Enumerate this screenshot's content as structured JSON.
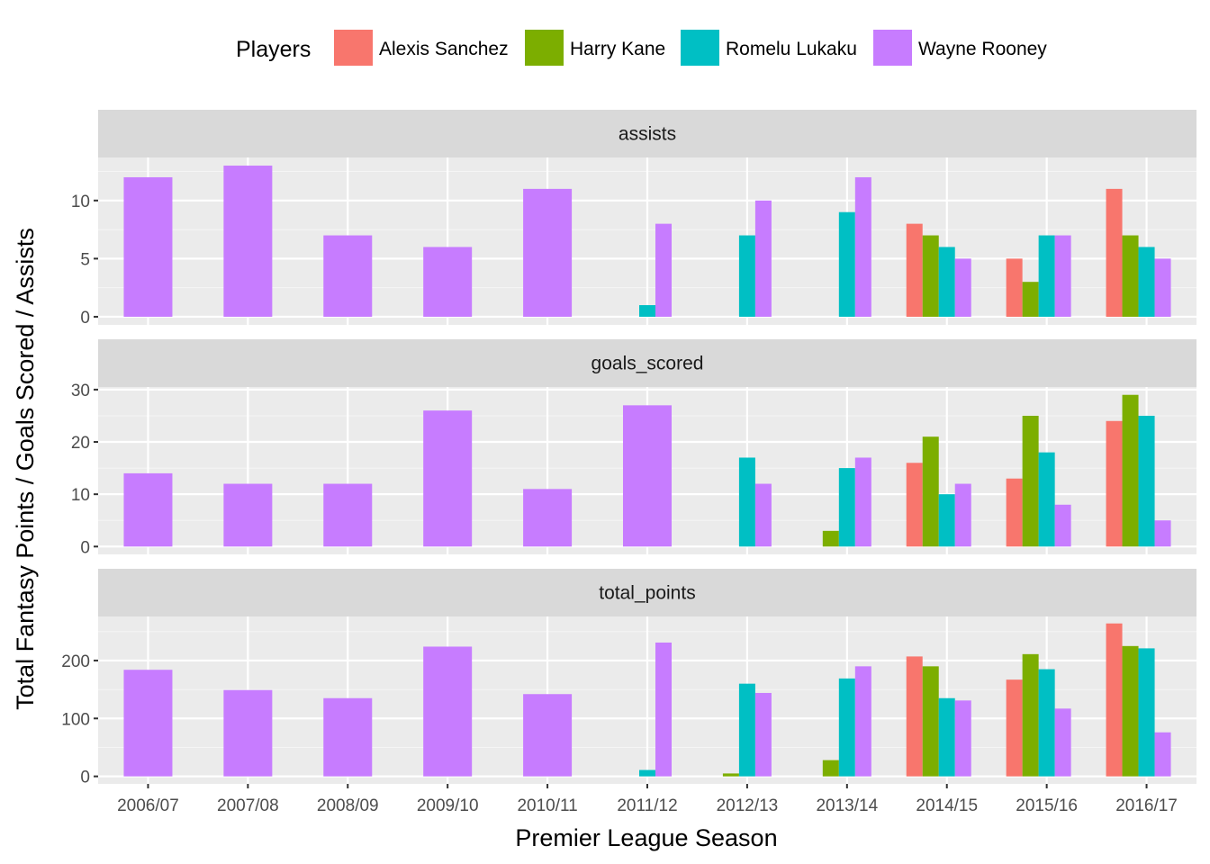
{
  "chart_data": {
    "type": "bar",
    "layout": "faceted-vertical",
    "categories": [
      "2006/07",
      "2007/08",
      "2008/09",
      "2009/10",
      "2010/11",
      "2011/12",
      "2012/13",
      "2013/14",
      "2014/15",
      "2015/16",
      "2016/17"
    ],
    "xlabel": "Premier League Season",
    "ylabel": "Total Fantasy Points / Goals Scored / Assists",
    "grid": true,
    "legend": {
      "position": "top",
      "title": "Players",
      "entries": [
        {
          "name": "Alexis Sanchez",
          "color": "#F8766D"
        },
        {
          "name": "Harry Kane",
          "color": "#7CAE00"
        },
        {
          "name": "Romelu Lukaku",
          "color": "#00BFC4"
        },
        {
          "name": "Wayne Rooney",
          "color": "#C77CFF"
        }
      ]
    },
    "facets": [
      {
        "label": "assists",
        "ylim": [
          -0.7,
          13.7
        ],
        "yticks": [
          0,
          5,
          10
        ],
        "series": [
          {
            "name": "Alexis Sanchez",
            "values": [
              null,
              null,
              null,
              null,
              null,
              null,
              null,
              null,
              8,
              5,
              11
            ]
          },
          {
            "name": "Harry Kane",
            "values": [
              null,
              null,
              null,
              null,
              null,
              null,
              null,
              null,
              7,
              3,
              7
            ]
          },
          {
            "name": "Romelu Lukaku",
            "values": [
              null,
              null,
              null,
              null,
              null,
              1,
              7,
              9,
              6,
              7,
              6
            ]
          },
          {
            "name": "Wayne Rooney",
            "values": [
              12,
              13,
              7,
              6,
              11,
              8,
              10,
              12,
              5,
              7,
              5
            ]
          }
        ]
      },
      {
        "label": "goals_scored",
        "ylim": [
          -1.5,
          30.5
        ],
        "yticks": [
          0,
          10,
          20,
          30
        ],
        "series": [
          {
            "name": "Alexis Sanchez",
            "values": [
              null,
              null,
              null,
              null,
              null,
              null,
              null,
              null,
              16,
              13,
              24
            ]
          },
          {
            "name": "Harry Kane",
            "values": [
              null,
              null,
              null,
              null,
              null,
              null,
              null,
              3,
              21,
              25,
              29
            ]
          },
          {
            "name": "Romelu Lukaku",
            "values": [
              null,
              null,
              null,
              null,
              null,
              null,
              17,
              15,
              10,
              18,
              25
            ]
          },
          {
            "name": "Wayne Rooney",
            "values": [
              14,
              12,
              12,
              26,
              11,
              27,
              12,
              17,
              12,
              8,
              5
            ]
          }
        ]
      },
      {
        "label": "total_points",
        "ylim": [
          -13,
          276
        ],
        "yticks": [
          0,
          100,
          200
        ],
        "series": [
          {
            "name": "Alexis Sanchez",
            "values": [
              null,
              null,
              null,
              null,
              null,
              null,
              null,
              null,
              207,
              167,
              264
            ]
          },
          {
            "name": "Harry Kane",
            "values": [
              null,
              null,
              null,
              null,
              null,
              null,
              5,
              28,
              190,
              211,
              225
            ]
          },
          {
            "name": "Romelu Lukaku",
            "values": [
              null,
              null,
              null,
              null,
              null,
              11,
              160,
              169,
              135,
              185,
              221
            ]
          },
          {
            "name": "Wayne Rooney",
            "values": [
              184,
              149,
              135,
              224,
              142,
              231,
              144,
              190,
              131,
              117,
              76
            ]
          }
        ]
      }
    ]
  }
}
